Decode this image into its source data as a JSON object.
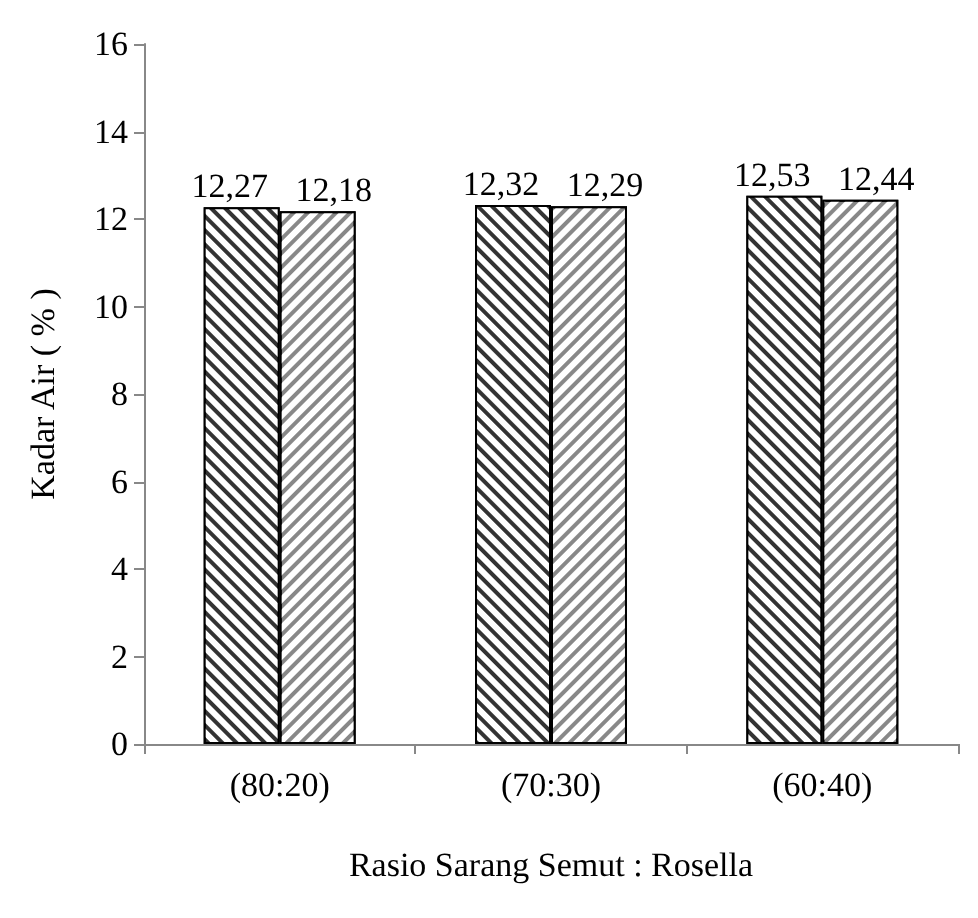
{
  "chart_data": {
    "type": "bar",
    "xlabel": "Rasio Sarang Semut : Rosella",
    "ylabel": "Kadar Air ( % )",
    "categories": [
      "(80:20)",
      "(70:30)",
      "(60:40)"
    ],
    "series": [
      {
        "color": "#333333",
        "values": [
          12.27,
          12.32,
          12.53
        ],
        "value_labels": [
          "12,27",
          "12,32",
          "12,53"
        ]
      },
      {
        "color": "#888888",
        "values": [
          12.18,
          12.29,
          12.44
        ],
        "value_labels": [
          "12,18",
          "12,29",
          "12,44"
        ]
      }
    ],
    "ylim": [
      0,
      16
    ],
    "yticks": [
      0,
      2,
      4,
      6,
      8,
      10,
      12,
      14,
      16
    ],
    "grid": false
  }
}
